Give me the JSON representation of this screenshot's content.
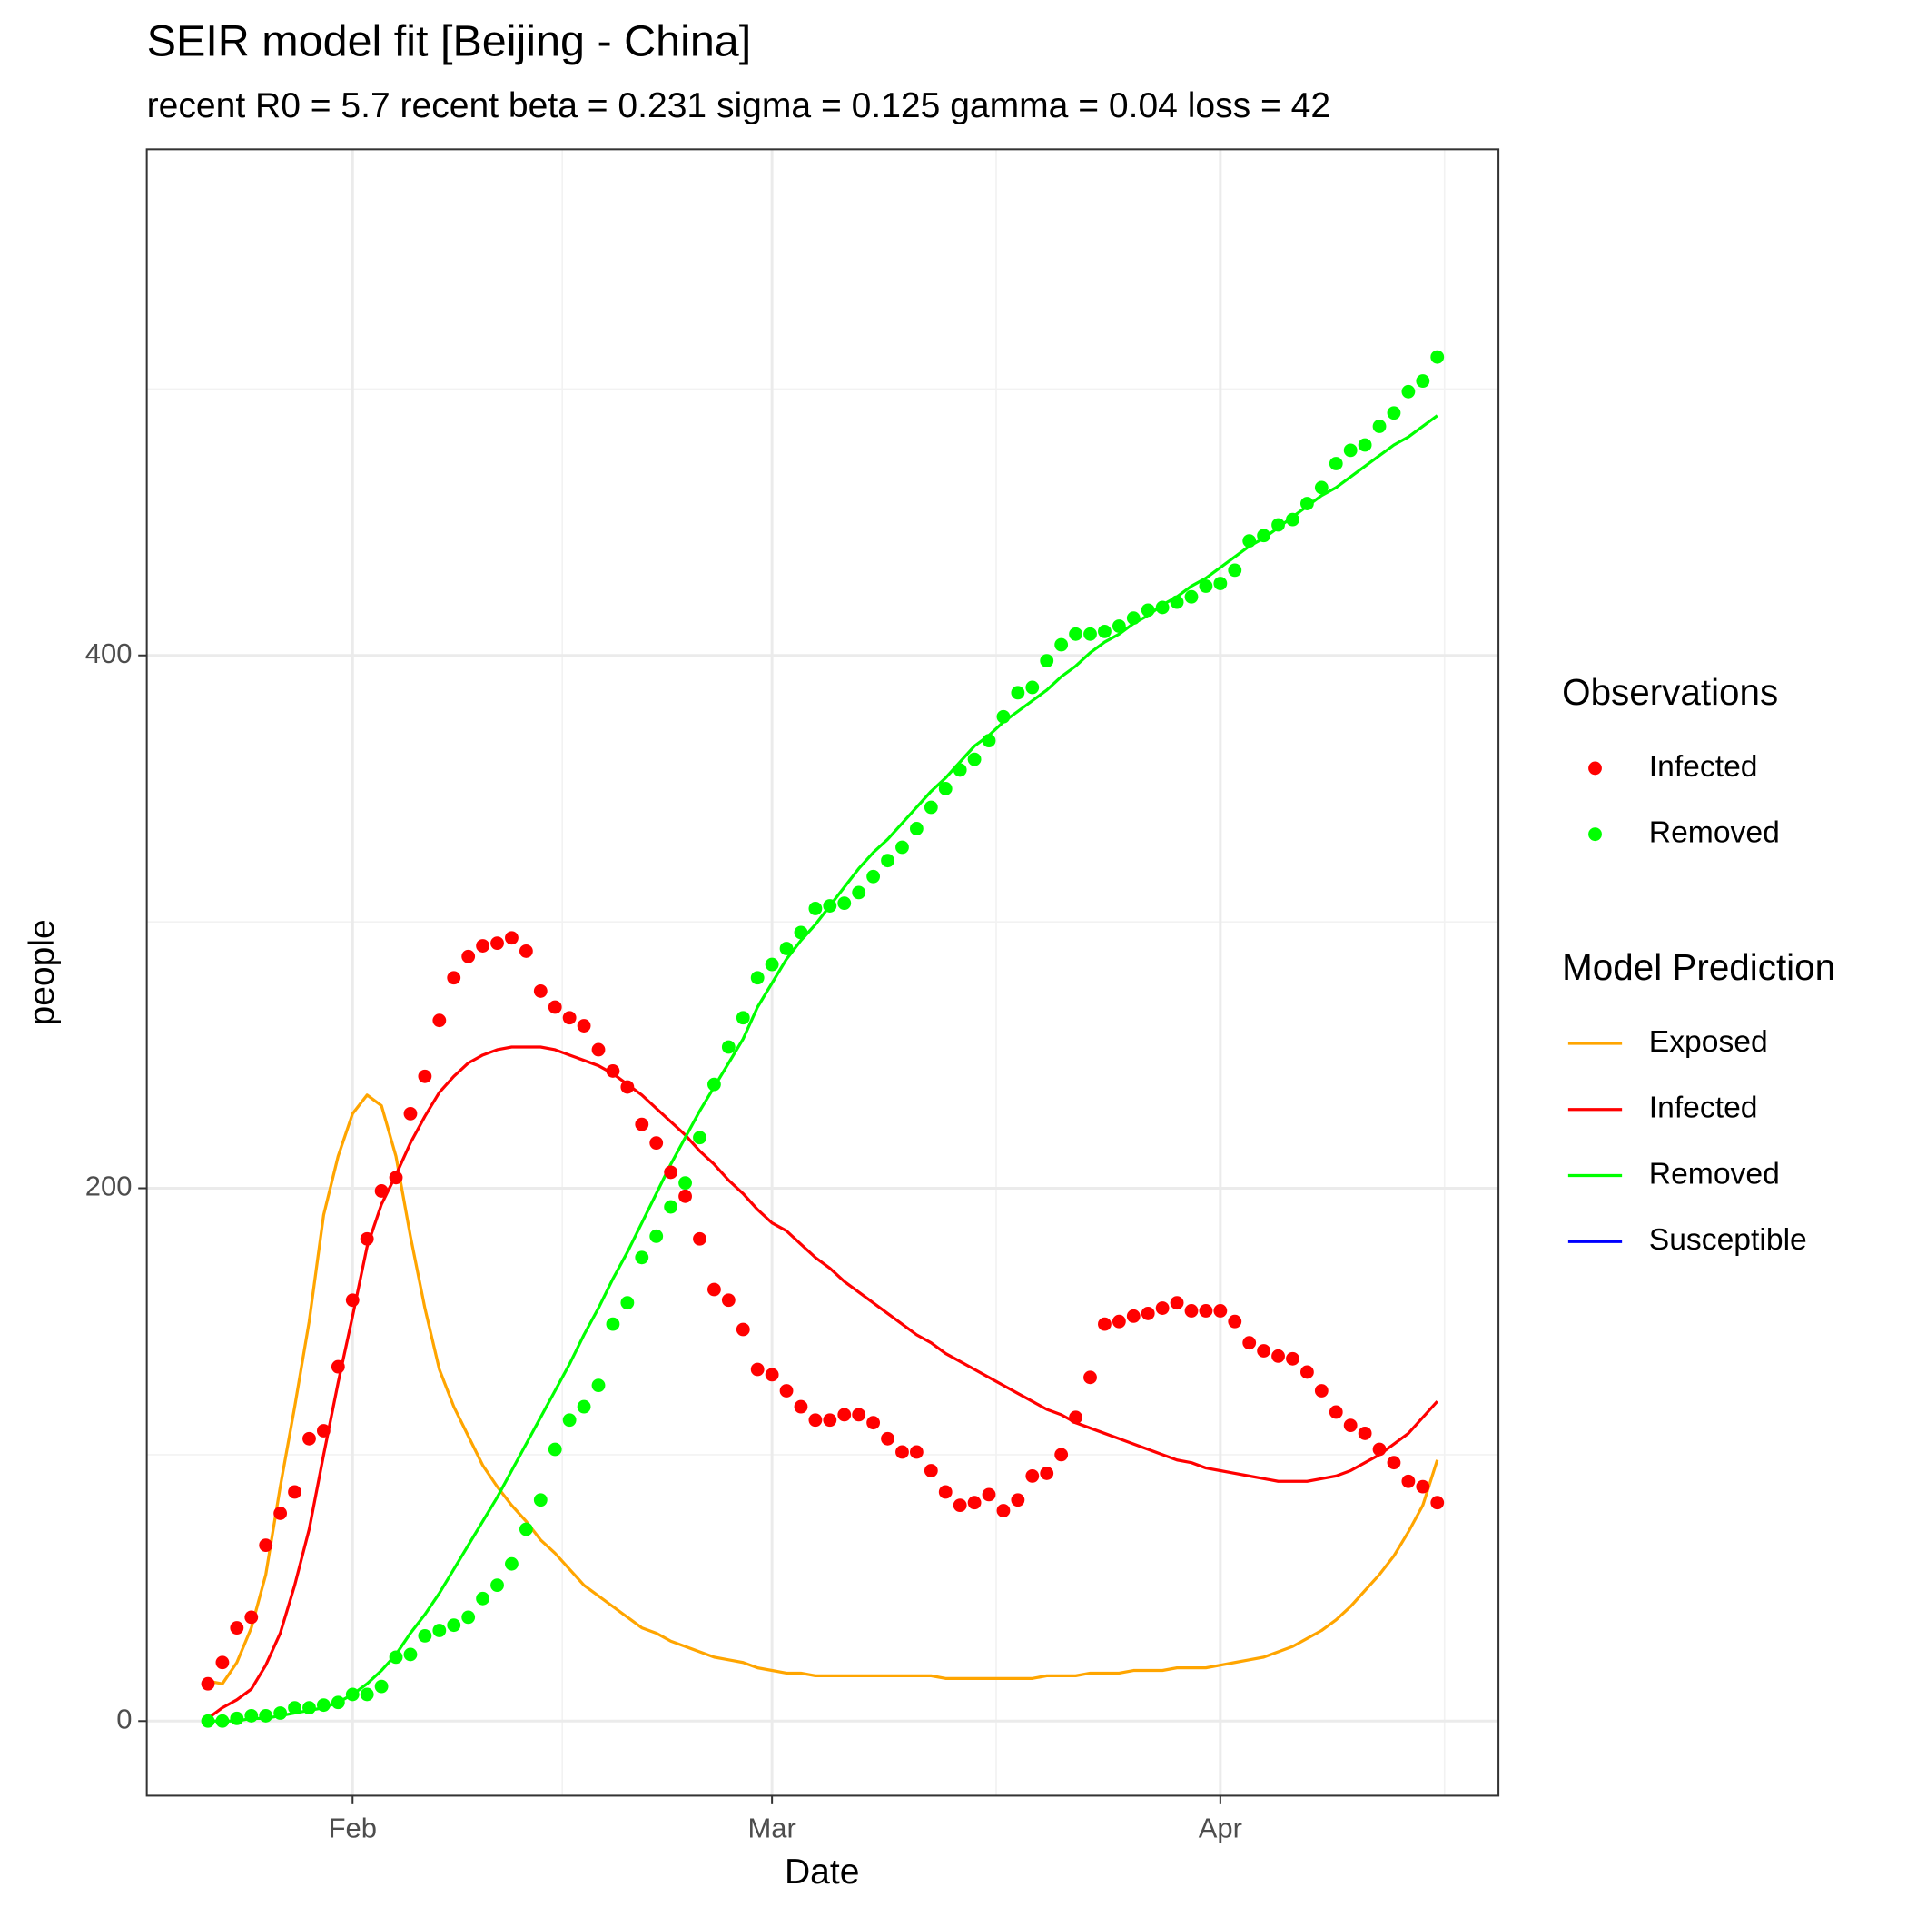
{
  "chart_data": {
    "type": "line",
    "title": "SEIR model fit [Beijing - China]",
    "subtitle": "recent R0 = 5.7 recent beta = 0.231 sigma = 0.125 gamma = 0.04 loss = 42",
    "x_label": "Date",
    "y_label": "people",
    "categories": [
      null,
      null,
      null,
      null,
      null,
      null,
      null,
      null,
      null,
      null,
      "Feb",
      null,
      null,
      null,
      null,
      null,
      null,
      null,
      null,
      null,
      null,
      null,
      null,
      null,
      null,
      null,
      null,
      null,
      null,
      null,
      null,
      null,
      null,
      null,
      null,
      null,
      null,
      null,
      null,
      "Mar",
      null,
      null,
      null,
      null,
      null,
      null,
      null,
      null,
      null,
      null,
      null,
      null,
      null,
      null,
      null,
      null,
      null,
      null,
      null,
      null,
      null,
      null,
      null,
      null,
      null,
      null,
      null,
      null,
      null,
      null,
      "Apr",
      null,
      null,
      null,
      null,
      null,
      null,
      null,
      null,
      null,
      null,
      null,
      null,
      null,
      null,
      null
    ],
    "ylim": [
      -28,
      590
    ],
    "yticks": [
      0,
      200,
      400
    ],
    "grid": true,
    "layers": [
      {
        "type": "scatter",
        "legend_title": "Observations",
        "series": [
          {
            "name": "Infected",
            "color": "#ff0000",
            "values": [
              14,
              22,
              35,
              39,
              66,
              78,
              86,
              106,
              109,
              133,
              158,
              181,
              199,
              204,
              228,
              242,
              263,
              279,
              287,
              291,
              292,
              294,
              289,
              274,
              268,
              264,
              261,
              252,
              244,
              238,
              224,
              217,
              206,
              197,
              181,
              162,
              158,
              147,
              132,
              130,
              124,
              118,
              113,
              113,
              115,
              115,
              112,
              106,
              101,
              101,
              94,
              86,
              81,
              82,
              85,
              79,
              83,
              92,
              93,
              100,
              114,
              129,
              149,
              150,
              152,
              153,
              155,
              157,
              154,
              154,
              154,
              150,
              142,
              139,
              137,
              136,
              131,
              124,
              116,
              111,
              108,
              102,
              97,
              90,
              88,
              82
            ]
          },
          {
            "name": "Removed",
            "color": "#00ff00",
            "values": [
              0,
              0,
              1,
              2,
              2,
              3,
              5,
              5,
              6,
              7,
              10,
              10,
              13,
              24,
              25,
              32,
              34,
              36,
              39,
              46,
              51,
              59,
              72,
              83,
              102,
              113,
              118,
              126,
              149,
              157,
              174,
              182,
              193,
              202,
              219,
              239,
              253,
              264,
              279,
              284,
              290,
              296,
              305,
              306,
              307,
              311,
              317,
              323,
              328,
              335,
              343,
              350,
              357,
              361,
              368,
              377,
              386,
              388,
              398,
              404,
              408,
              408,
              409,
              411,
              414,
              417,
              418,
              420,
              422,
              426,
              427,
              432,
              443,
              445,
              449,
              451,
              457,
              463,
              472,
              477,
              479,
              486,
              491,
              499,
              503,
              512
            ]
          }
        ]
      },
      {
        "type": "line",
        "legend_title": "Model Prediction",
        "series": [
          {
            "name": "Exposed",
            "color": "#ffa500",
            "values": [
              15,
              14,
              22,
              35,
              55,
              88,
              118,
              150,
              190,
              212,
              228,
              235,
              231,
              212,
              182,
              155,
              132,
              118,
              107,
              96,
              88,
              81,
              75,
              68,
              63,
              57,
              51,
              47,
              43,
              39,
              35,
              33,
              30,
              28,
              26,
              24,
              23,
              22,
              20,
              19,
              18,
              18,
              17,
              17,
              17,
              17,
              17,
              17,
              17,
              17,
              17,
              16,
              16,
              16,
              16,
              16,
              16,
              16,
              17,
              17,
              17,
              18,
              18,
              18,
              19,
              19,
              19,
              20,
              20,
              20,
              21,
              22,
              23,
              24,
              26,
              28,
              31,
              34,
              38,
              43,
              49,
              55,
              62,
              71,
              81,
              98
            ]
          },
          {
            "name": "Infected",
            "color": "#ff0000",
            "values": [
              1,
              5,
              8,
              12,
              21,
              33,
              51,
              72,
              100,
              127,
              152,
              178,
              194,
              205,
              217,
              227,
              236,
              242,
              247,
              250,
              252,
              253,
              253,
              253,
              252,
              250,
              248,
              246,
              243,
              239,
              235,
              230,
              225,
              220,
              214,
              209,
              203,
              198,
              192,
              187,
              184,
              179,
              174,
              170,
              165,
              161,
              157,
              153,
              149,
              145,
              142,
              138,
              135,
              132,
              129,
              126,
              123,
              120,
              117,
              115,
              112,
              110,
              108,
              106,
              104,
              102,
              100,
              98,
              97,
              95,
              94,
              93,
              92,
              91,
              90,
              90,
              90,
              91,
              92,
              94,
              97,
              100,
              104,
              108,
              114,
              120
            ]
          },
          {
            "name": "Removed",
            "color": "#00ff00",
            "values": [
              0,
              0,
              0,
              1,
              1,
              2,
              3,
              4,
              5,
              7,
              10,
              14,
              19,
              25,
              33,
              40,
              48,
              57,
              66,
              75,
              84,
              94,
              104,
              114,
              124,
              134,
              145,
              155,
              166,
              176,
              187,
              198,
              209,
              219,
              229,
              238,
              247,
              256,
              268,
              277,
              286,
              293,
              299,
              306,
              313,
              320,
              326,
              331,
              337,
              343,
              349,
              354,
              360,
              366,
              370,
              375,
              379,
              383,
              387,
              392,
              396,
              401,
              405,
              408,
              412,
              415,
              419,
              422,
              426,
              429,
              433,
              437,
              441,
              444,
              448,
              452,
              456,
              460,
              463,
              467,
              471,
              475,
              479,
              482,
              486,
              490
            ]
          },
          {
            "name": "Susceptible",
            "color": "#0000ff",
            "values": [
              null,
              null,
              null,
              null,
              null,
              null,
              null,
              null,
              null,
              null,
              null,
              null,
              null,
              null,
              null,
              null,
              null,
              null,
              null,
              null,
              null,
              null,
              null,
              null,
              null,
              null,
              null,
              null,
              null,
              null,
              null,
              null,
              null,
              null,
              null,
              null,
              null,
              null,
              null,
              null,
              null,
              null,
              null,
              null,
              null,
              null,
              null,
              null,
              null,
              null,
              null,
              null,
              null,
              null,
              null,
              null,
              null,
              null,
              null,
              null,
              null,
              null,
              null,
              null,
              null,
              null,
              null,
              null,
              null,
              null,
              null,
              null,
              null,
              null,
              null,
              null,
              null,
              null,
              null,
              null,
              null,
              null,
              null,
              null,
              null,
              null
            ]
          }
        ]
      }
    ]
  }
}
